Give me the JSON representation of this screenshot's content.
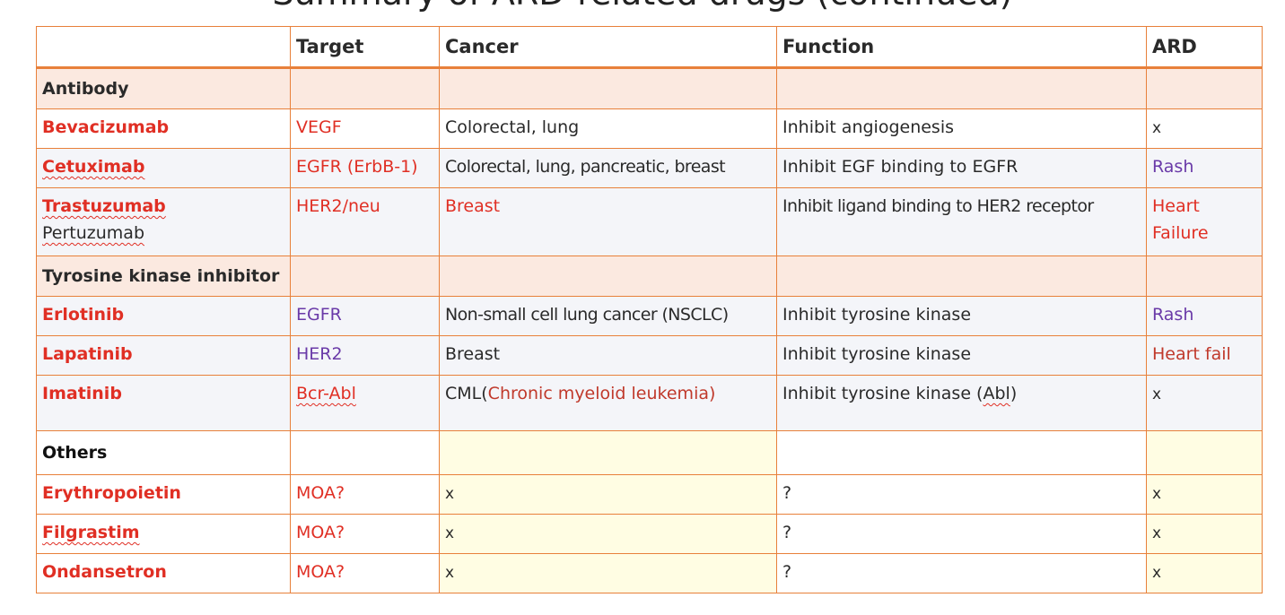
{
  "title_fragment": "Summary of ARD-related drugs (continued)",
  "colors": {
    "border": "#e8803a",
    "drug_red": "#e02f24",
    "purple": "#6a3aa8",
    "peach": "#fbe9e0",
    "yellow": "#fffde3"
  },
  "headers": [
    "",
    "Target",
    "Cancer",
    "Function",
    "ARD"
  ],
  "sections": {
    "antibody": "Antibody",
    "tki": "Tyrosine kinase inhibitor",
    "others": "Others"
  },
  "rows": {
    "bevacizumab": {
      "drug": "Bevacizumab",
      "target": "VEGF",
      "cancer": "Colorectal, lung",
      "function": "Inhibit angiogenesis",
      "ard": "x"
    },
    "cetuximab": {
      "drug": "Cetuximab",
      "target": "EGFR (ErbB-1)",
      "cancer": "Colorectal, lung, pancreatic, breast",
      "function": "Inhibit EGF binding to EGFR",
      "ard": "Rash"
    },
    "trastuzumab": {
      "drug": "Trastuzumab",
      "drug2": "Pertuzumab",
      "target": "HER2/neu",
      "cancer": "Breast",
      "function": "Inhibit ligand binding to HER2 receptor",
      "ard": "Heart",
      "ard2": "Failure"
    },
    "erlotinib": {
      "drug": "Erlotinib",
      "target": "EGFR",
      "cancer": "Non-small cell lung cancer (NSCLC)",
      "function": "Inhibit tyrosine kinase",
      "ard": "Rash"
    },
    "lapatinib": {
      "drug": "Lapatinib",
      "target": "HER2",
      "cancer": "Breast",
      "function": "Inhibit tyrosine kinase",
      "ard": "Heart fail"
    },
    "imatinib": {
      "drug": "Imatinib",
      "target": "Bcr-Abl",
      "cancer_prefix": "CML(",
      "cancer_detail": "Chronic myeloid leukemia)",
      "function_prefix": "Inhibit tyrosine kinase (",
      "function_abl": "Abl",
      "function_suffix": ")",
      "ard": "x"
    },
    "erythropoietin": {
      "drug": "Erythropoietin",
      "target": "MOA?",
      "cancer": "x",
      "function": "?",
      "ard": "x"
    },
    "filgrastim": {
      "drug": "Filgrastim",
      "target": "MOA?",
      "cancer": "x",
      "function": "?",
      "ard": "x"
    },
    "ondansetron": {
      "drug": "Ondansetron",
      "target": "MOA?",
      "cancer": "x",
      "function": "?",
      "ard": "x"
    }
  }
}
